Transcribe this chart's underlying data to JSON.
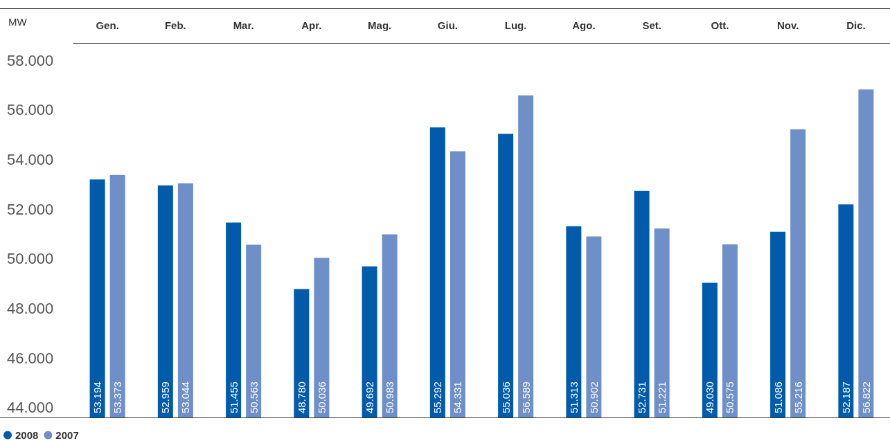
{
  "chart_data": {
    "type": "bar",
    "ylabel": "MW",
    "categories": [
      "Gen.",
      "Feb.",
      "Mar.",
      "Apr.",
      "Mag.",
      "Giu.",
      "Lug.",
      "Ago.",
      "Set.",
      "Ott.",
      "Nov.",
      "Dic."
    ],
    "series": [
      {
        "name": "2008",
        "color": "#005bab",
        "values": [
          53194,
          52959,
          51455,
          48780,
          49692,
          55292,
          55036,
          51313,
          52731,
          49030,
          51086,
          52187
        ],
        "value_labels": [
          "53.194",
          "52.959",
          "51.455",
          "48.780",
          "49.692",
          "55.292",
          "55.036",
          "51.313",
          "52.731",
          "49.030",
          "51.086",
          "52.187"
        ]
      },
      {
        "name": "2007",
        "color": "#6f8fc8",
        "values": [
          53373,
          53044,
          50563,
          50036,
          50983,
          54331,
          56589,
          50902,
          51221,
          50575,
          55216,
          56822
        ],
        "value_labels": [
          "53.373",
          "53.044",
          "50.563",
          "50.036",
          "50.983",
          "54.331",
          "56.589",
          "50.902",
          "51.221",
          "50.575",
          "55.216",
          "56.822"
        ]
      }
    ],
    "ylim": [
      43600,
      58700
    ],
    "yticks": [
      {
        "value": 44000,
        "label": "44.000"
      },
      {
        "value": 46000,
        "label": "46.000"
      },
      {
        "value": 48000,
        "label": "48.000"
      },
      {
        "value": 50000,
        "label": "50.000"
      },
      {
        "value": 52000,
        "label": "52.000"
      },
      {
        "value": 54000,
        "label": "54.000"
      },
      {
        "value": 56000,
        "label": "56.000"
      },
      {
        "value": 58000,
        "label": "58.000"
      }
    ],
    "grid": false,
    "legend": "bottom left"
  }
}
